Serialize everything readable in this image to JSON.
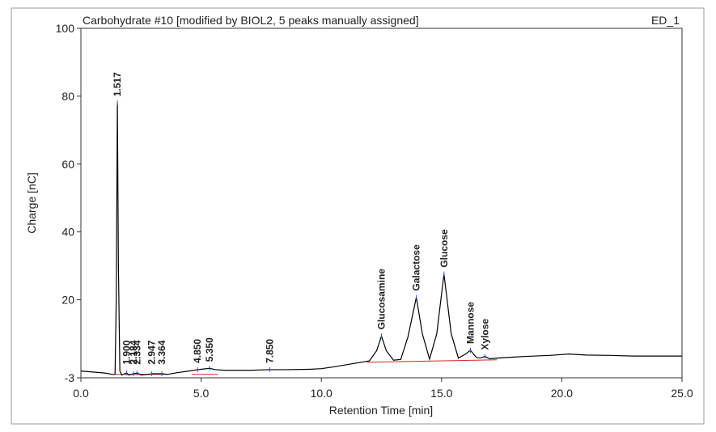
{
  "chart_data": {
    "type": "line",
    "title": "Carbohydrate #10 [modified by BIOL2, 5 peaks manually assigned]",
    "channel": "ED_1",
    "x_label": "Retention Time [min]",
    "y_label": "Charge [nC]",
    "color": "#000000",
    "xlim": [
      0,
      25
    ],
    "ylim": [
      -3,
      100
    ],
    "xticks": [
      {
        "value": 0,
        "label": "0.0"
      },
      {
        "value": 5,
        "label": "5.0"
      },
      {
        "value": 10,
        "label": "10.0"
      },
      {
        "value": 15,
        "label": "15.0"
      },
      {
        "value": 20,
        "label": "20.0"
      },
      {
        "value": 25,
        "label": "25.0"
      }
    ],
    "yticks": [
      -3,
      20,
      40,
      60,
      80,
      100
    ],
    "x": [
      0,
      0.5,
      1.0,
      1.3,
      1.42,
      1.47,
      1.517,
      1.56,
      1.62,
      1.7,
      1.9,
      2.0,
      2.2,
      2.35,
      2.5,
      3.0,
      3.4,
      3.6,
      4.0,
      4.5,
      4.85,
      5.1,
      5.35,
      5.6,
      6,
      7,
      7.85,
      8.5,
      9.5,
      10,
      10.5,
      11,
      11.5,
      12,
      12.3,
      12.5,
      12.7,
      13.0,
      13.3,
      13.6,
      13.95,
      14.2,
      14.5,
      14.8,
      15.1,
      15.4,
      15.7,
      16.0,
      16.2,
      16.45,
      16.6,
      16.8,
      17.0,
      17.5,
      18.5,
      19.5,
      20.3,
      21,
      22,
      23,
      25
    ],
    "values": [
      -1,
      -1.3,
      -1.6,
      -2,
      -2,
      20,
      78,
      30,
      -1,
      -2.2,
      -1.6,
      -2.2,
      -1.8,
      -1.6,
      -2.2,
      -1.8,
      -1.8,
      -2,
      -1.5,
      -1.0,
      -0.6,
      -0.4,
      -0.2,
      -0.6,
      -0.8,
      -0.8,
      -0.6,
      -0.6,
      -0.5,
      -0.3,
      0.2,
      0.8,
      1.4,
      2.0,
      5,
      9.3,
      5,
      2.2,
      2.4,
      9,
      20.7,
      10,
      2.5,
      10,
      27.6,
      10,
      2.8,
      4,
      5.1,
      3,
      2.8,
      3.3,
      2.6,
      2.9,
      3.3,
      3.6,
      4.0,
      3.7,
      3.6,
      3.4,
      3.4
    ],
    "peaks": [
      {
        "label": "1.517",
        "x": 1.517,
        "y": 78
      },
      {
        "label": "1.900",
        "x": 1.9,
        "y": -1.6
      },
      {
        "label": "2.184",
        "x": 2.184,
        "y": -1.8
      },
      {
        "label": "2.334",
        "x": 2.334,
        "y": -1.6
      },
      {
        "label": "2.947",
        "x": 2.947,
        "y": -1.8
      },
      {
        "label": "3.364",
        "x": 3.364,
        "y": -1.8
      },
      {
        "label": "4.850",
        "x": 4.85,
        "y": -0.6
      },
      {
        "label": "5.350",
        "x": 5.35,
        "y": -0.2
      },
      {
        "label": "7.850",
        "x": 7.85,
        "y": -0.6
      },
      {
        "label": "Glucosamine",
        "x": 12.5,
        "y": 9.3
      },
      {
        "label": "Galactose",
        "x": 13.95,
        "y": 20.7
      },
      {
        "label": "Glucose",
        "x": 15.1,
        "y": 27.6
      },
      {
        "label": "Mannose",
        "x": 16.2,
        "y": 5.1
      },
      {
        "label": "Xylose",
        "x": 16.8,
        "y": 3.3
      }
    ]
  }
}
